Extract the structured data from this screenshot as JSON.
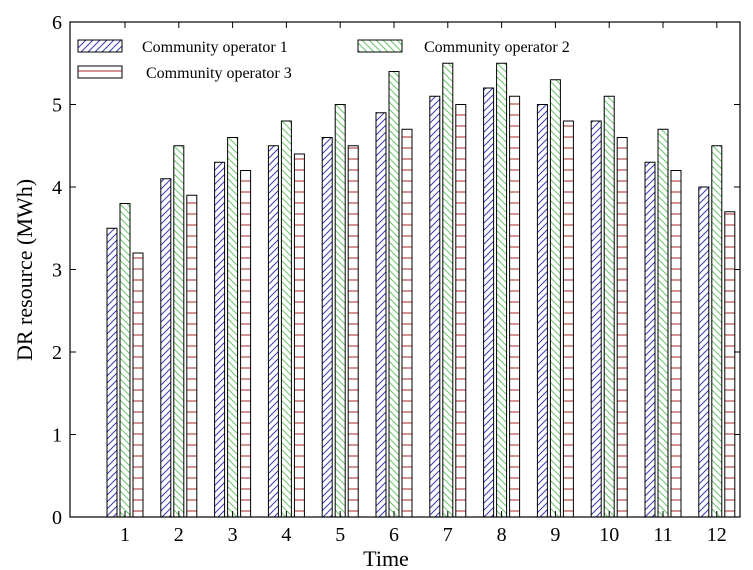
{
  "chart_data": {
    "type": "bar",
    "title": "",
    "xlabel": "Time",
    "ylabel": "DR resource (MWh)",
    "categories": [
      "1",
      "2",
      "3",
      "4",
      "5",
      "6",
      "7",
      "8",
      "9",
      "10",
      "11",
      "12"
    ],
    "ylim": [
      0,
      6
    ],
    "yticks": [
      "0",
      "1",
      "2",
      "3",
      "4",
      "5",
      "6"
    ],
    "legend_position": "top-left",
    "grid": false,
    "series": [
      {
        "name": "Community operator 1",
        "values": [
          3.5,
          4.1,
          4.3,
          4.5,
          4.6,
          4.9,
          5.1,
          5.2,
          5.0,
          4.8,
          4.3,
          4.0
        ],
        "color": "#3a3ab8",
        "pattern": "diagonal-forward"
      },
      {
        "name": "Community operator 2",
        "values": [
          3.8,
          4.5,
          4.6,
          4.8,
          5.0,
          5.4,
          5.5,
          5.5,
          5.3,
          5.1,
          4.7,
          4.5
        ],
        "color": "#6cc86c",
        "pattern": "diagonal-backward"
      },
      {
        "name": "Community operator 3",
        "values": [
          3.2,
          3.9,
          4.2,
          4.4,
          4.5,
          4.7,
          5.0,
          5.1,
          4.8,
          4.6,
          4.2,
          3.7
        ],
        "color": "#a82828",
        "pattern": "horizontal"
      }
    ]
  }
}
